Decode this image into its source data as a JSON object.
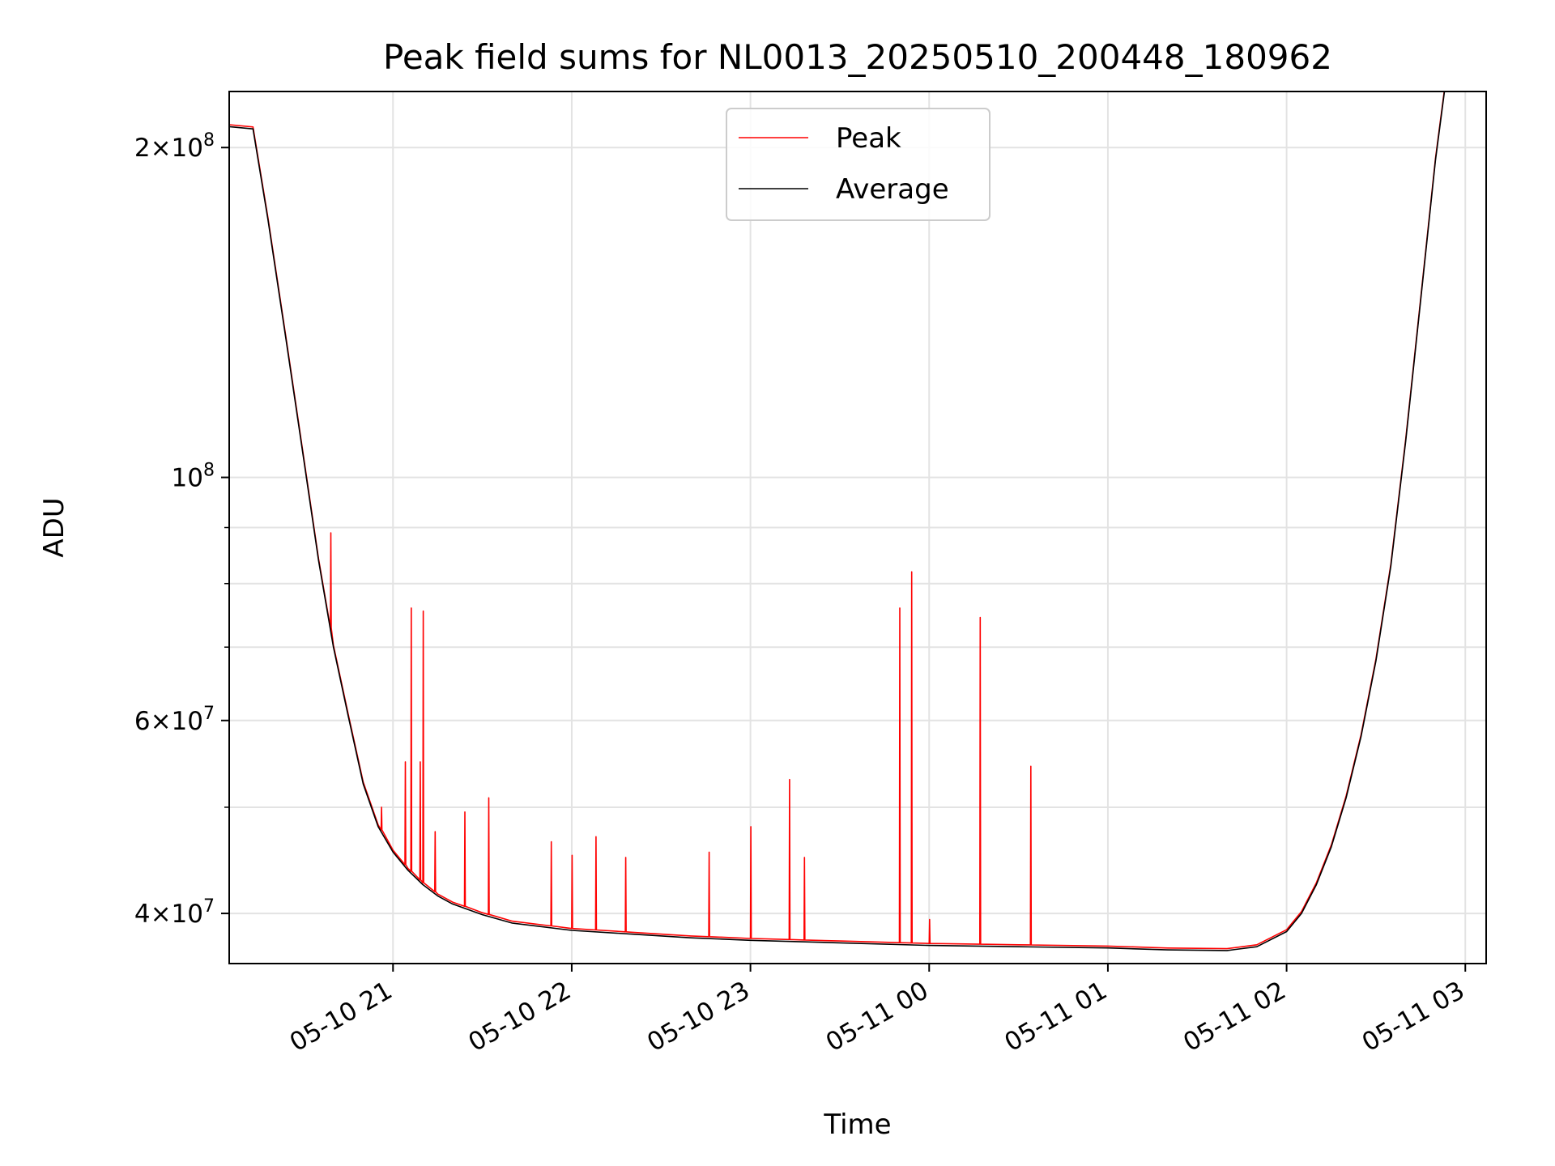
{
  "chart_data": {
    "type": "line",
    "title": "Peak field sums for NL0013_20250510_200448_180962",
    "xlabel": "Time",
    "ylabel": "ADU",
    "yscale": "log",
    "ylim": [
      36000000,
      225000000
    ],
    "xlim": [
      "2025-05-10 20:05",
      "2025-05-11 03:07"
    ],
    "grid": true,
    "legend": "top-center",
    "x_ticks": [
      "05-10 21",
      "05-10 22",
      "05-10 23",
      "05-11 00",
      "05-11 01",
      "05-11 02",
      "05-11 03"
    ],
    "x_tick_values": [
      "2025-05-10 21:00",
      "2025-05-10 22:00",
      "2025-05-10 23:00",
      "2025-05-11 00:00",
      "2025-05-11 01:00",
      "2025-05-11 02:00",
      "2025-05-11 03:00"
    ],
    "y_major_ticks": [
      {
        "value": 40000000,
        "mantissa": "4",
        "exponent": "7"
      },
      {
        "value": 60000000,
        "mantissa": "6",
        "exponent": "7"
      },
      {
        "value": 100000000,
        "mantissa": "",
        "exponent": "8"
      },
      {
        "value": 200000000,
        "mantissa": "2",
        "exponent": "8"
      }
    ],
    "y_minor_ticks": [
      50000000,
      70000000,
      80000000,
      90000000
    ],
    "series": [
      {
        "name": "Average",
        "color": "#000000",
        "x": [
          "2025-05-10 20:05",
          "2025-05-10 20:13",
          "2025-05-10 20:18",
          "2025-05-10 20:24",
          "2025-05-10 20:30",
          "2025-05-10 20:35",
          "2025-05-10 20:40",
          "2025-05-10 20:45",
          "2025-05-10 20:50",
          "2025-05-10 20:55",
          "2025-05-10 21:00",
          "2025-05-10 21:05",
          "2025-05-10 21:10",
          "2025-05-10 21:15",
          "2025-05-10 21:20",
          "2025-05-10 21:30",
          "2025-05-10 21:40",
          "2025-05-10 22:00",
          "2025-05-10 22:20",
          "2025-05-10 22:40",
          "2025-05-10 23:00",
          "2025-05-10 23:30",
          "2025-05-11 00:00",
          "2025-05-11 00:30",
          "2025-05-11 01:00",
          "2025-05-11 01:20",
          "2025-05-11 01:40",
          "2025-05-11 01:50",
          "2025-05-11 02:00",
          "2025-05-11 02:05",
          "2025-05-11 02:10",
          "2025-05-11 02:15",
          "2025-05-11 02:20",
          "2025-05-11 02:25",
          "2025-05-11 02:30",
          "2025-05-11 02:35",
          "2025-05-11 02:40",
          "2025-05-11 02:45",
          "2025-05-11 02:50",
          "2025-05-11 02:53"
        ],
        "y": [
          209000000,
          208000000,
          172000000,
          134000000,
          104000000,
          84000000,
          70000000,
          60500000,
          52500000,
          48000000,
          45500000,
          43800000,
          42500000,
          41500000,
          40800000,
          39900000,
          39200000,
          38600000,
          38300000,
          38000000,
          37800000,
          37600000,
          37400000,
          37300000,
          37200000,
          37050000,
          37000000,
          37300000,
          38500000,
          40000000,
          42500000,
          46000000,
          51000000,
          58000000,
          68000000,
          83000000,
          108000000,
          145000000,
          195000000,
          225000000
        ]
      },
      {
        "name": "Peak",
        "color": "#ff0000",
        "spikes": [
          {
            "x": "2025-05-10 20:39",
            "y": 89000000
          },
          {
            "x": "2025-05-10 20:56",
            "y": 50000000
          },
          {
            "x": "2025-05-10 21:04",
            "y": 55000000
          },
          {
            "x": "2025-05-10 21:06",
            "y": 76000000
          },
          {
            "x": "2025-05-10 21:09",
            "y": 55000000
          },
          {
            "x": "2025-05-10 21:10",
            "y": 75500000
          },
          {
            "x": "2025-05-10 21:14",
            "y": 47500000
          },
          {
            "x": "2025-05-10 21:24",
            "y": 49500000
          },
          {
            "x": "2025-05-10 21:32",
            "y": 51000000
          },
          {
            "x": "2025-05-10 21:53",
            "y": 46500000
          },
          {
            "x": "2025-05-10 22:00",
            "y": 45200000
          },
          {
            "x": "2025-05-10 22:08",
            "y": 47000000
          },
          {
            "x": "2025-05-10 22:18",
            "y": 45000000
          },
          {
            "x": "2025-05-10 22:46",
            "y": 45500000
          },
          {
            "x": "2025-05-10 23:00",
            "y": 48000000
          },
          {
            "x": "2025-05-10 23:13",
            "y": 53000000
          },
          {
            "x": "2025-05-10 23:18",
            "y": 45000000
          },
          {
            "x": "2025-05-10 23:50",
            "y": 76000000
          },
          {
            "x": "2025-05-10 23:54",
            "y": 82000000
          },
          {
            "x": "2025-05-11 00:00",
            "y": 39500000
          },
          {
            "x": "2025-05-11 00:17",
            "y": 74500000
          },
          {
            "x": "2025-05-11 00:34",
            "y": 54500000
          }
        ]
      }
    ]
  }
}
